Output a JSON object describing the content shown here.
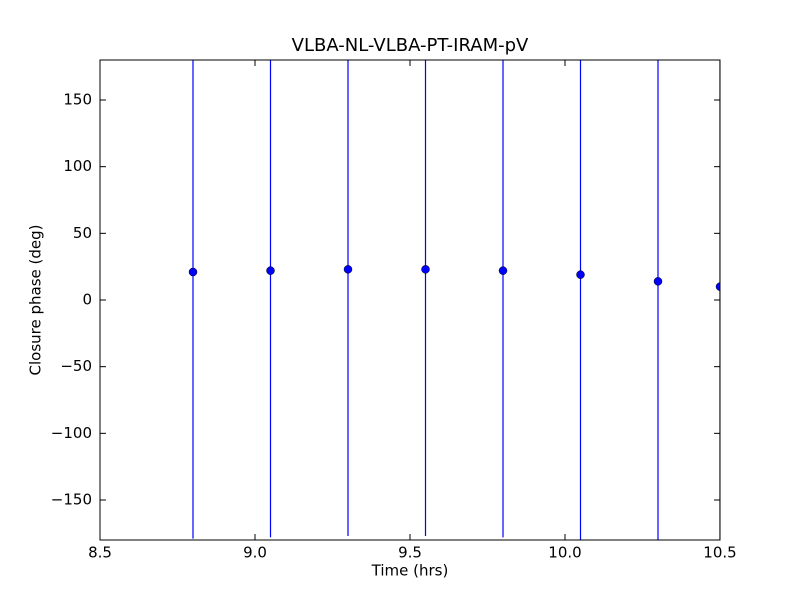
{
  "chart_data": {
    "type": "errorbar",
    "title": "VLBA-NL-VLBA-PT-IRAM-pV",
    "xlabel": "Time (hrs)",
    "ylabel": "Closure phase (deg)",
    "x": [
      8.8,
      9.05,
      9.3,
      9.55,
      9.8,
      10.05,
      10.3,
      10.5
    ],
    "values": [
      21,
      22,
      23,
      23,
      22,
      19,
      14,
      10
    ],
    "errors": [
      200,
      200,
      200,
      200,
      200,
      200,
      200,
      200
    ],
    "color": "#0000ff",
    "xlim": [
      8.5,
      10.5
    ],
    "xticks": [
      8.5,
      {
        "value": 9,
        "label": "9.0"
      },
      9.5,
      {
        "value": 10,
        "label": "10.0"
      },
      10.5
    ],
    "ylim": [
      -180,
      180
    ],
    "yticks": [
      {
        "value": -150,
        "label": "−150"
      },
      {
        "value": -100,
        "label": "−100"
      },
      {
        "value": -50,
        "label": "−50"
      },
      0,
      50,
      100,
      150
    ],
    "grid": false
  }
}
